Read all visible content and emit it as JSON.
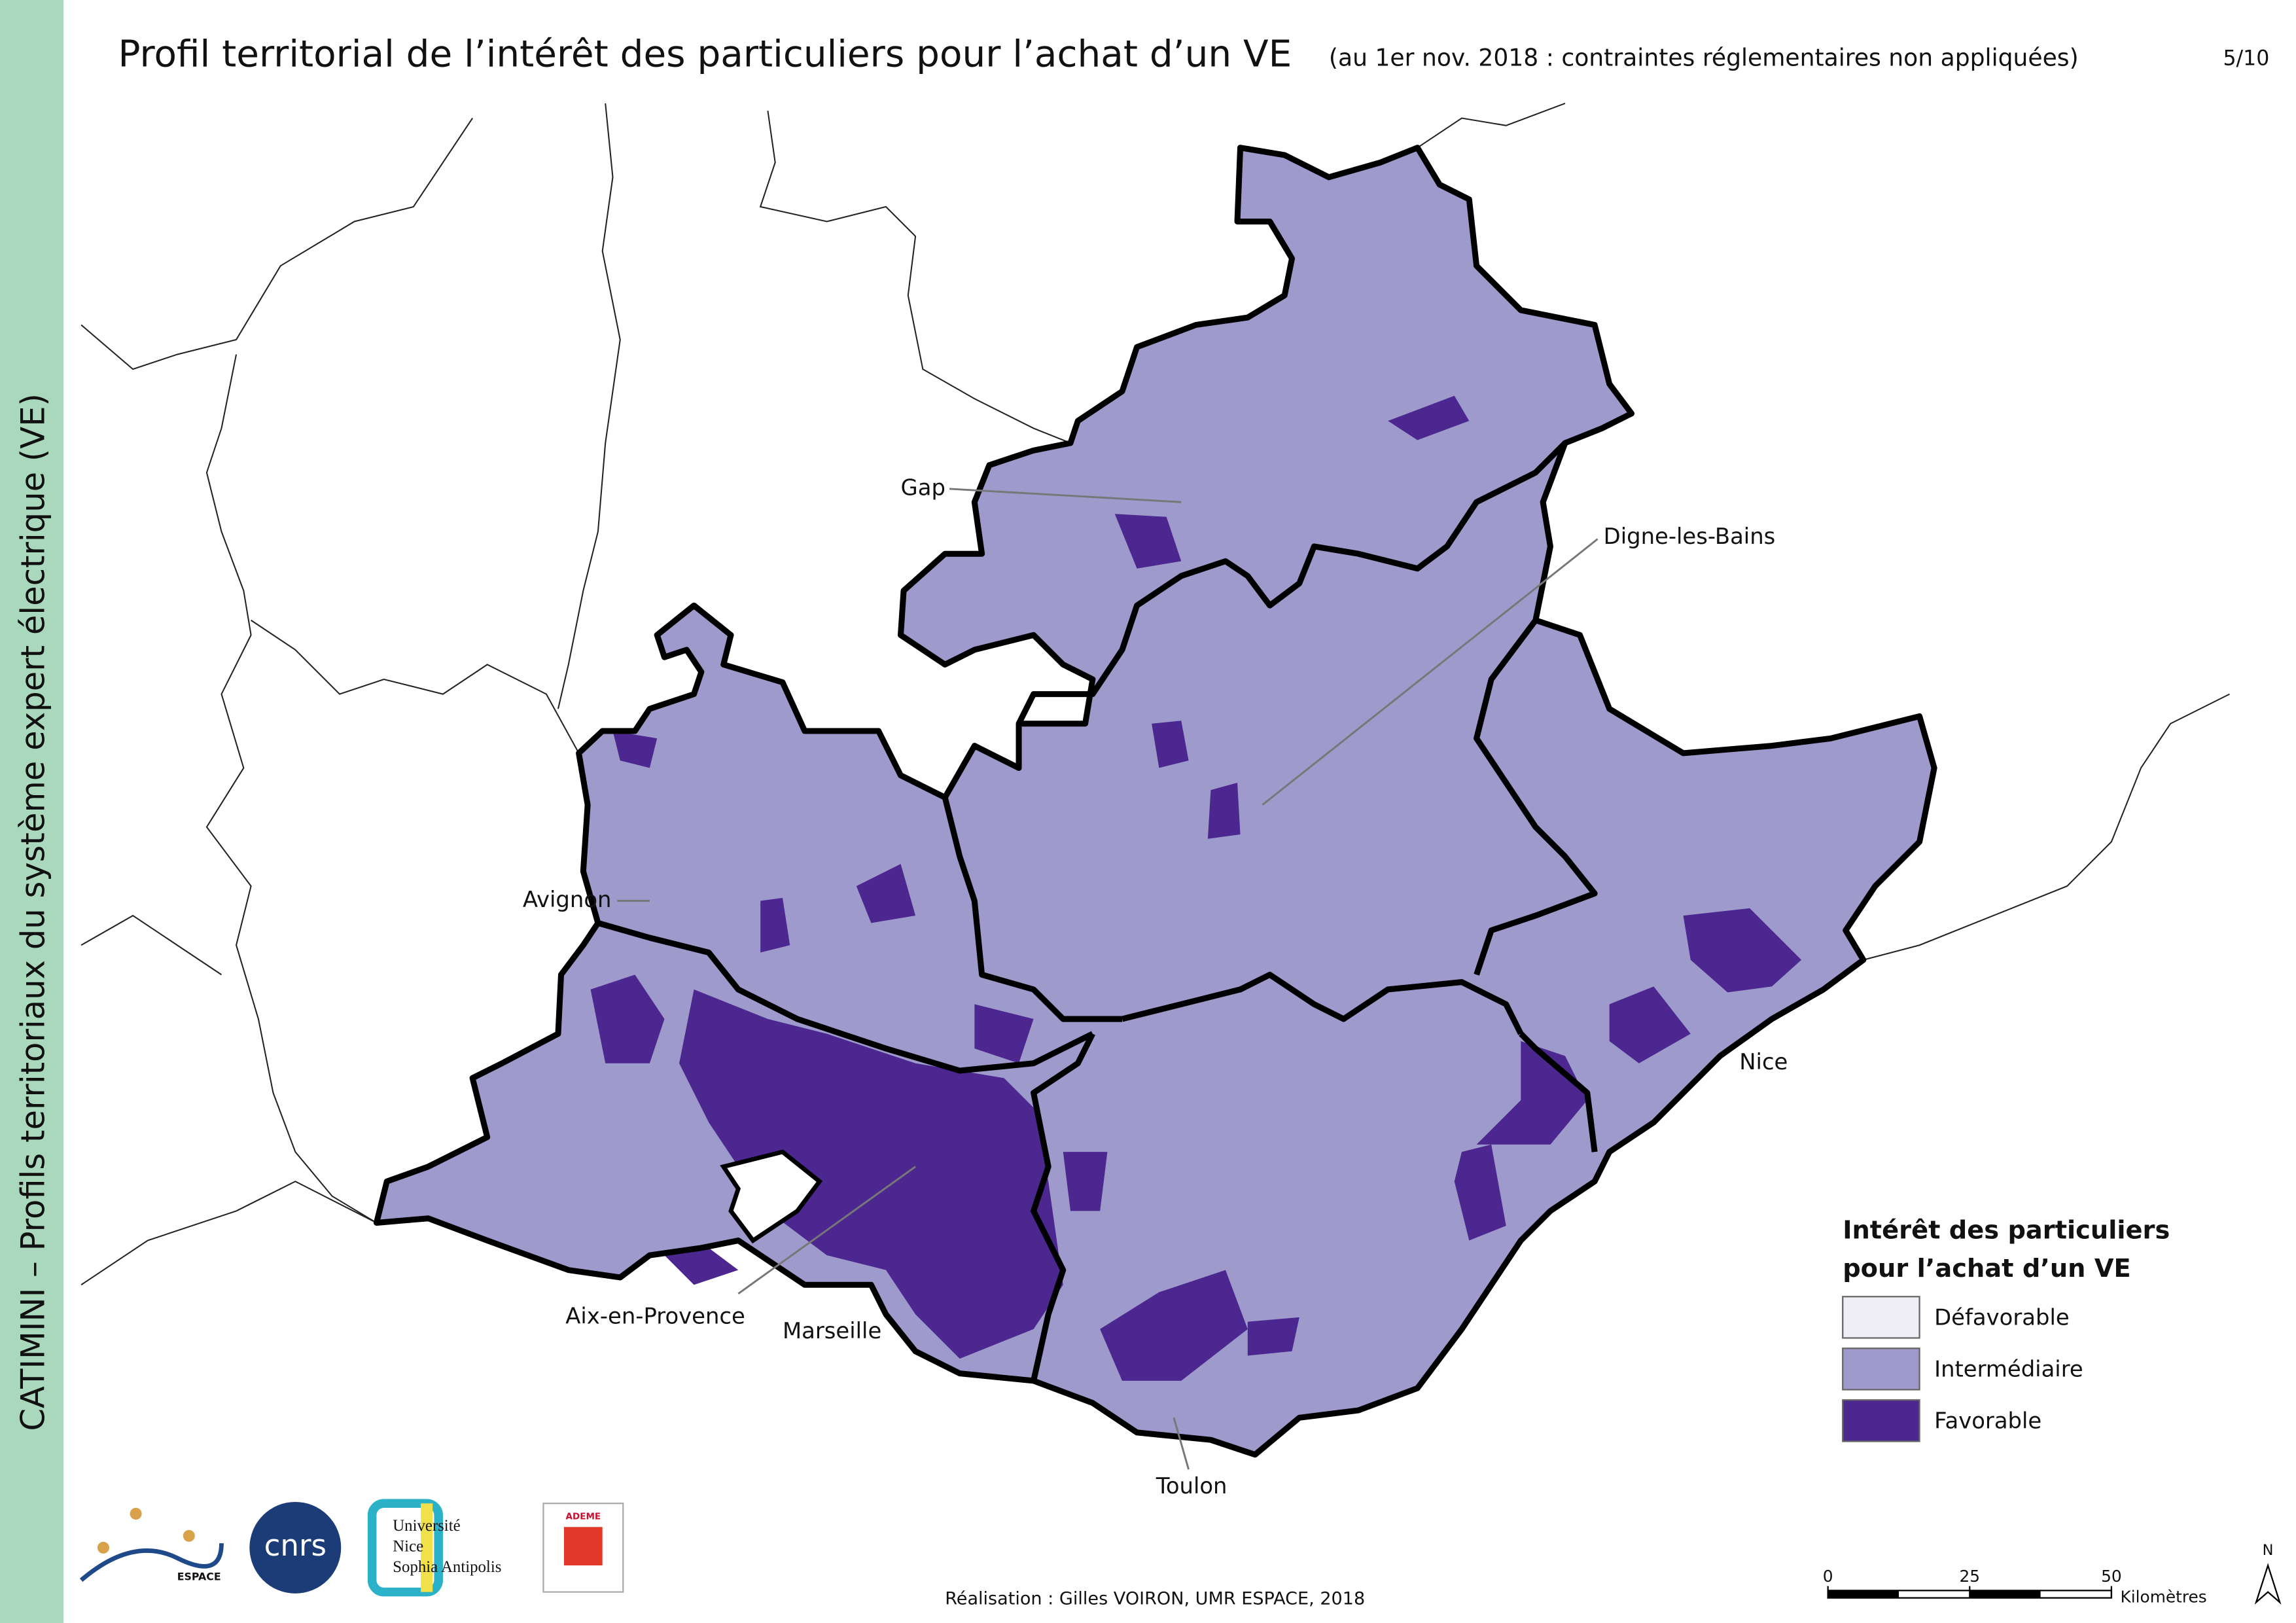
{
  "header": {
    "title": "Profil territorial de l’intérêt des particuliers pour l’achat d’un VE",
    "subtitle": "(au 1er nov. 2018 : contraintes réglementaires non appliquées)",
    "page": "5/10"
  },
  "sidebar": "CATIMINI – Profils territoriaux du système expert électrique (VE)",
  "cities": [
    "Gap",
    "Digne-les-Bains",
    "Avignon",
    "Nice",
    "Aix-en-Provence",
    "Marseille",
    "Toulon"
  ],
  "legend": {
    "title": [
      "Intérêt des particuliers",
      "pour l’achat d’un VE"
    ],
    "items": [
      {
        "label": "Défavorable",
        "color": "#efeef5"
      },
      {
        "label": "Intermédiaire",
        "color": "#9e9acb"
      },
      {
        "label": "Favorable",
        "color": "#4d2790"
      }
    ]
  },
  "scale_bar": {
    "ticks": [
      0,
      25,
      50
    ],
    "unit": "Kilomètres"
  },
  "north": "N",
  "credit": "Réalisation : Gilles VOIRON, UMR ESPACE, 2018",
  "logos": [
    "ESPACE",
    "cnrs",
    "Université",
    "Nice",
    "Sophia Antipolis",
    "ADEME"
  ]
}
